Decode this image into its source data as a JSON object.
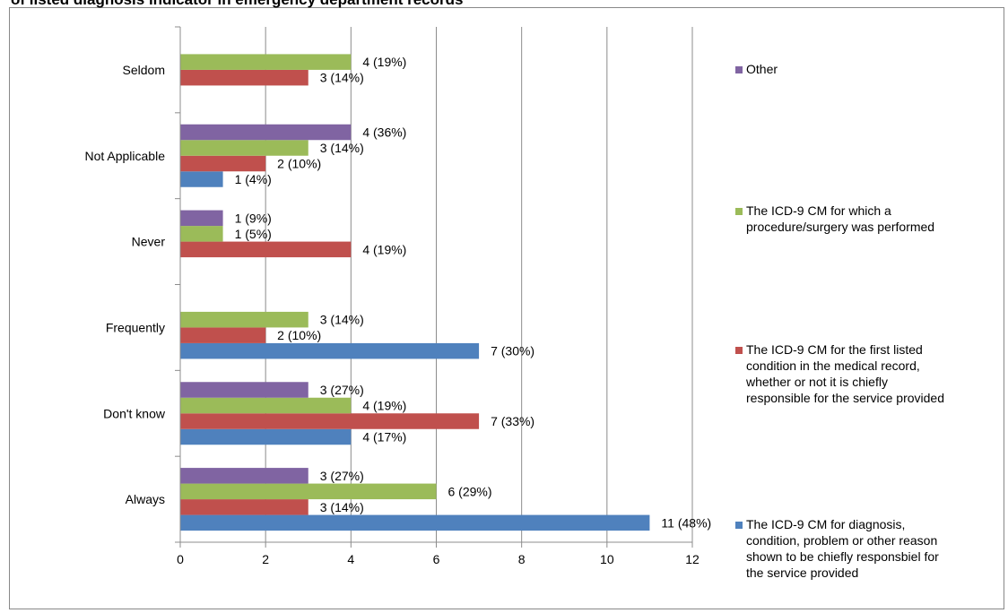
{
  "title": "of listed diagnosis indicator in emergency department records",
  "chart_data": {
    "type": "bar",
    "orientation": "horizontal",
    "title": "of listed diagnosis indicator in emergency department records",
    "xlabel": "",
    "ylabel": "",
    "xlim": [
      0,
      12
    ],
    "xticks": [
      0,
      2,
      4,
      6,
      8,
      10,
      12
    ],
    "grid": true,
    "legend_position": "right",
    "categories": [
      "Seldom",
      "Not Applicable",
      "Never",
      "Frequently",
      "Don't know",
      "Always"
    ],
    "series": [
      {
        "name": "The ICD-9 CM for diagnosis, condition, problem or other reason shown to be chiefly responsbiel for the service provided",
        "legend_lines": [
          "The ICD-9 CM for diagnosis,",
          "condition, problem or other reason",
          "shown to be chiefly responsbiel for",
          "the service provided"
        ],
        "color": "#4F81BD",
        "values": [
          null,
          1,
          null,
          7,
          4,
          11
        ],
        "labels": [
          null,
          "1 (4%)",
          null,
          "7 (30%)",
          "4 (17%)",
          "11 (48%)"
        ]
      },
      {
        "name": "The ICD-9 CM for the first listed condition in the medical record, whether or not it is chiefly responsible for the service provided",
        "legend_lines": [
          "The ICD-9 CM for the first listed",
          "condition in the medical record,",
          "whether or not it is chiefly",
          "responsible for the service provided"
        ],
        "color": "#C0504D",
        "values": [
          3,
          2,
          4,
          2,
          7,
          3
        ],
        "labels": [
          "3 (14%)",
          "2 (10%)",
          "4 (19%)",
          "2 (10%)",
          "7 (33%)",
          "3 (14%)"
        ]
      },
      {
        "name": "The ICD-9 CM for which a procedure/surgery was performed",
        "legend_lines": [
          "The ICD-9 CM for which a",
          "procedure/surgery was performed"
        ],
        "color": "#9BBB59",
        "values": [
          4,
          3,
          1,
          3,
          4,
          6
        ],
        "labels": [
          "4 (19%)",
          "3 (14%)",
          "1 (5%)",
          "3 (14%)",
          "4 (19%)",
          "6 (29%)"
        ]
      },
      {
        "name": "Other",
        "legend_lines": [
          "Other"
        ],
        "color": "#8064A2",
        "values": [
          null,
          4,
          1,
          null,
          3,
          3
        ],
        "labels": [
          null,
          "4 (36%)",
          "1 (9%)",
          null,
          "3 (27%)",
          "3 (27%)"
        ]
      }
    ]
  }
}
